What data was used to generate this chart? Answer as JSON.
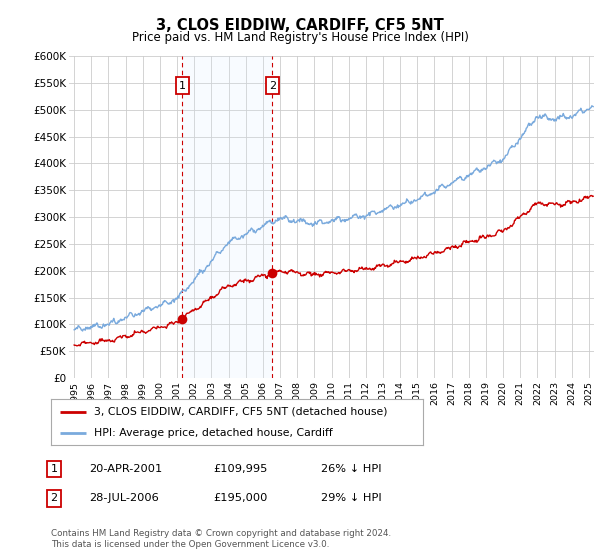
{
  "title": "3, CLOS EIDDIW, CARDIFF, CF5 5NT",
  "subtitle": "Price paid vs. HM Land Registry's House Price Index (HPI)",
  "hpi_color": "#7aaadd",
  "price_color": "#cc0000",
  "shade_color": "#ddeeff",
  "background_color": "#ffffff",
  "grid_color": "#cccccc",
  "ylim": [
    0,
    600000
  ],
  "yticks": [
    0,
    50000,
    100000,
    150000,
    200000,
    250000,
    300000,
    350000,
    400000,
    450000,
    500000,
    550000,
    600000
  ],
  "xlim_start": 1994.7,
  "xlim_end": 2025.3,
  "transaction1": {
    "year": 2001.3,
    "price": 109995,
    "label": "1"
  },
  "transaction2": {
    "year": 2006.56,
    "price": 195000,
    "label": "2"
  },
  "legend_line1": "3, CLOS EIDDIW, CARDIFF, CF5 5NT (detached house)",
  "legend_line2": "HPI: Average price, detached house, Cardiff",
  "table_row1_num": "1",
  "table_row1_date": "20-APR-2001",
  "table_row1_price": "£109,995",
  "table_row1_hpi": "26% ↓ HPI",
  "table_row2_num": "2",
  "table_row2_date": "28-JUL-2006",
  "table_row2_price": "£195,000",
  "table_row2_hpi": "29% ↓ HPI",
  "footer": "Contains HM Land Registry data © Crown copyright and database right 2024.\nThis data is licensed under the Open Government Licence v3.0."
}
